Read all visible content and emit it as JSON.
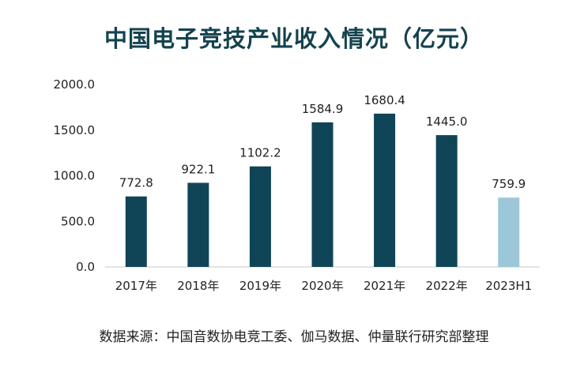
{
  "title": "中国电子竞技产业收入情况（亿元）",
  "source": "数据来源：中国音数协电竞工委、伽马数据、仲量联行研究部整理",
  "colors": {
    "title": "#14424f",
    "bar_primary": "#0f4557",
    "bar_highlight": "#9cc7d8",
    "axis": "#c8c8c8",
    "text": "#222222"
  },
  "chart_data": {
    "type": "bar",
    "title": "中国电子竞技产业收入情况（亿元）",
    "categories": [
      "2017年",
      "2018年",
      "2019年",
      "2020年",
      "2021年",
      "2022年",
      "2023H1"
    ],
    "values": [
      772.8,
      922.1,
      1102.2,
      1584.9,
      1680.4,
      1445.0,
      759.9
    ],
    "value_labels": [
      "772.8",
      "922.1",
      "1102.2",
      "1584.9",
      "1680.4",
      "1445.0",
      "759.9"
    ],
    "highlight_categories": [
      "2023H1"
    ],
    "ylim": [
      0,
      2000
    ],
    "yticks": [
      0,
      500,
      1000,
      1500,
      2000
    ],
    "ytick_labels": [
      "0.0",
      "500.0",
      "1000.0",
      "1500.0",
      "2000.0"
    ],
    "xlabel": "",
    "ylabel": "",
    "grid": false,
    "legend": "none"
  }
}
